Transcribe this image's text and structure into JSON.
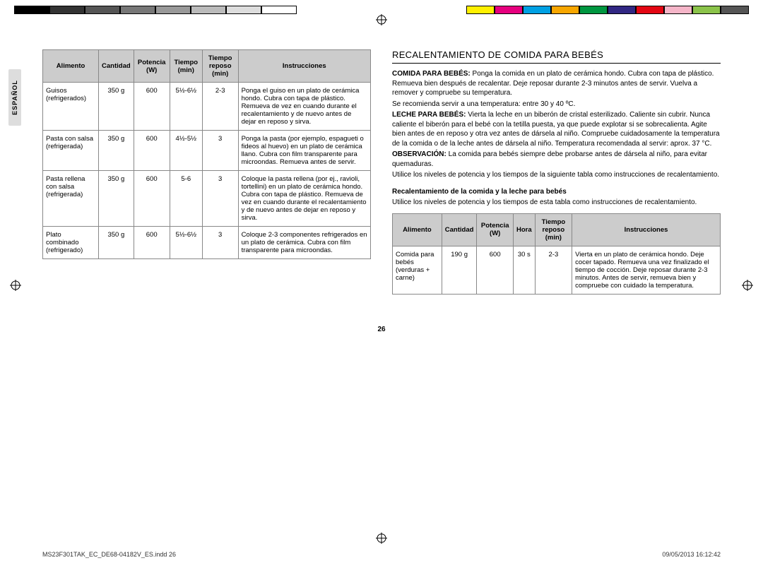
{
  "colorbar": {
    "left": [
      "#000",
      "#333",
      "#555",
      "#777",
      "#999",
      "#bbb",
      "#ddd",
      "#fff"
    ],
    "right": [
      "#fff000",
      "#e6007e",
      "#00a0e3",
      "#f7a600",
      "#009640",
      "#312783",
      "#e30613",
      "#f5b5c8",
      "#8bc34a",
      "#555"
    ]
  },
  "sidetab": "ESPAÑOL",
  "table1": {
    "headers": [
      "Alimento",
      "Cantidad",
      "Potencia (W)",
      "Tiempo (min)",
      "Tiempo reposo (min)",
      "Instrucciones"
    ],
    "rows": [
      [
        "Guisos (refrigerados)",
        "350 g",
        "600",
        "5½-6½",
        "2-3",
        "Ponga el guiso en un plato de cerámica hondo. Cubra con tapa de plástico. Remueva de vez en cuando durante el recalentamiento y de nuevo antes de dejar en reposo y sirva."
      ],
      [
        "Pasta con salsa (refrigerada)",
        "350 g",
        "600",
        "4½-5½",
        "3",
        "Ponga la pasta (por ejemplo, espagueti o fideos al huevo) en un plato de cerámica llano. Cubra con film transparente para microondas. Remueva antes de servir."
      ],
      [
        "Pasta rellena con salsa (refrigerada)",
        "350 g",
        "600",
        "5-6",
        "3",
        "Coloque la pasta rellena (por ej., ravioli, tortellini) en un plato de cerámica hondo. Cubra con tapa de plástico. Remueva de vez en cuando durante el recalentamiento y de nuevo antes de dejar en reposo y sirva."
      ],
      [
        "Plato combinado (refrigerado)",
        "350 g",
        "600",
        "5½-6½",
        "3",
        "Coloque 2-3 componentes refrigerados en un plato de cerámica. Cubra con film transparente para microondas."
      ]
    ]
  },
  "right": {
    "heading": "RECALENTAMIENTO DE COMIDA PARA BEBÉS",
    "p1a": "COMIDA PARA BEBÉS:",
    "p1b": " Ponga la comida en un plato de cerámica hondo. Cubra con tapa de plástico. Remueva bien después de recalentar. Deje reposar durante 2-3 minutos antes de servir. Vuelva a remover y compruebe su temperatura.",
    "p2": "Se recomienda servir a una temperatura: entre 30 y 40 ºC.",
    "p3a": "LECHE PARA BEBÉS:",
    "p3b": " Vierta la leche en un biberón de cristal esterilizado. Caliente sin cubrir. Nunca caliente el biberón para el bebé con la tetilla puesta, ya que puede explotar si se sobrecalienta. Agite bien antes de en reposo y otra vez antes de dársela al niño. Compruebe cuidadosamente la temperatura de la comida o de la leche antes de dársela al niño. Temperatura recomendada al servir: aprox. 37 °C.",
    "p4a": "OBSERVACIÓN:",
    "p4b": " La comida para bebés siempre debe probarse antes de dársela al niño, para evitar quemaduras.",
    "p5": "Utilice los niveles de potencia y los tiempos de la siguiente tabla como instrucciones de recalentamiento.",
    "sub": "Recalentamiento de la comida y la leche para bebés",
    "sub2": "Utilice los niveles de potencia y los tiempos de esta tabla como instrucciones de recalentamiento."
  },
  "table2": {
    "headers": [
      "Alimento",
      "Cantidad",
      "Potencia (W)",
      "Hora",
      "Tiempo reposo (min)",
      "Instrucciones"
    ],
    "rows": [
      [
        "Comida para bebés (verduras + carne)",
        "190 g",
        "600",
        "30 s",
        "2-3",
        "Vierta en un plato de cerámica hondo. Deje cocer tapado. Remueva una vez finalizado el tiempo de cocción. Deje reposar durante 2-3 minutos. Antes de servir, remueva bien y compruebe con cuidado la temperatura."
      ]
    ]
  },
  "pagenum": "26",
  "footer": {
    "left": "MS23F301TAK_EC_DE68-04182V_ES.indd   26",
    "right": "09/05/2013   16:12:42"
  }
}
